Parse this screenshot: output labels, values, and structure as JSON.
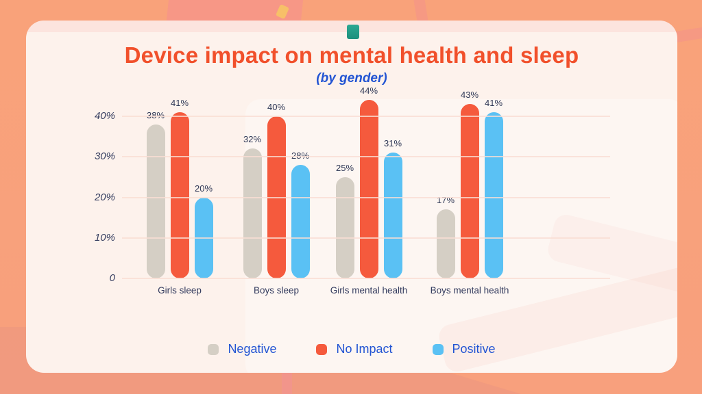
{
  "page": {
    "title": "Device impact on mental health and sleep",
    "subtitle": "(by gender)"
  },
  "chart_data": {
    "type": "bar",
    "title": "Device impact on mental health and sleep",
    "subtitle": "(by gender)",
    "categories": [
      "Girls sleep",
      "Boys sleep",
      "Girls mental health",
      "Boys mental health"
    ],
    "series": [
      {
        "name": "Negative",
        "color": "#d5cfc5",
        "values": [
          38,
          32,
          25,
          17
        ]
      },
      {
        "name": "No Impact",
        "color": "#f55a3d",
        "values": [
          41,
          40,
          44,
          43
        ]
      },
      {
        "name": "Positive",
        "color": "#5ac1f4",
        "values": [
          20,
          28,
          31,
          41
        ]
      }
    ],
    "value_suffix": "%",
    "yticks": [
      {
        "label": "40%",
        "value": 40
      },
      {
        "label": "30%",
        "value": 30
      },
      {
        "label": "20%",
        "value": 20
      },
      {
        "label": "10%",
        "value": 10
      },
      {
        "label": "0",
        "value": 0
      }
    ],
    "ylim": [
      0,
      45
    ],
    "grid": true,
    "legend_position": "bottom"
  },
  "colors": {
    "background": "#f9a27a",
    "card_bg": "#fdf2ec",
    "title_text": "#f1502b",
    "subtitle_text": "#2254d3",
    "legend_text": "#2254d3",
    "axis_text": "#333b5e",
    "gridline": "#f9ddd3",
    "bar_negative": "#d5cfc5",
    "bar_no_impact": "#f55a3d",
    "bar_positive": "#5ac1f4",
    "teal_accent": "#28a38d"
  }
}
